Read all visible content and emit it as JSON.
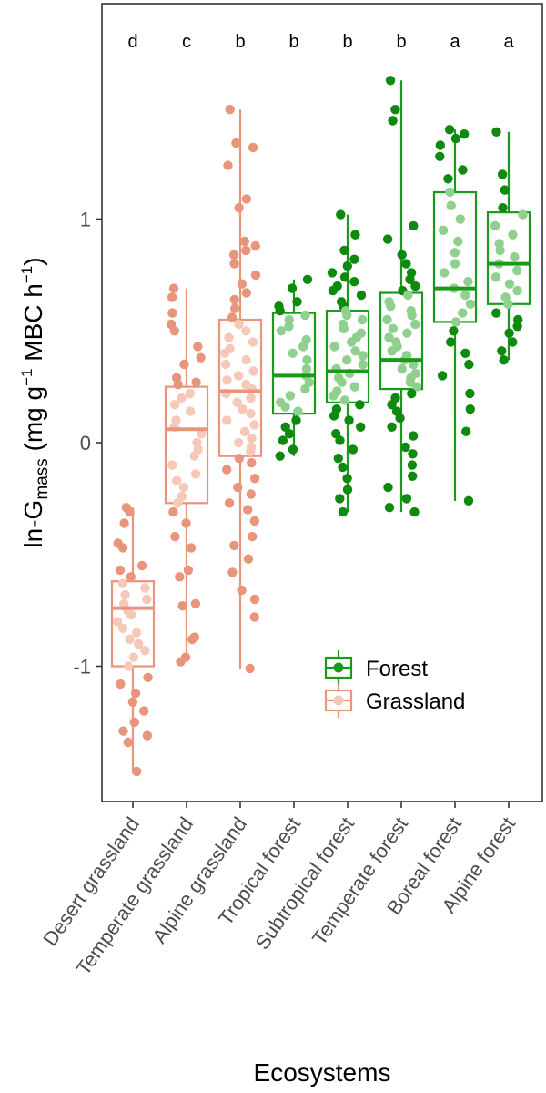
{
  "chart_data": {
    "type": "box",
    "xlabel": "Ecosystems",
    "ylabel": {
      "prefix": "ln-G",
      "sub": "mass",
      "unit_a": " (mg g",
      "sup_a": "−1",
      "unit_b": " MBC h",
      "sup_b": "−1",
      "close": ")"
    },
    "ylim": [
      -1.6,
      1.95
    ],
    "yticks": [
      {
        "value": -1,
        "label": "-1"
      },
      {
        "value": 0,
        "label": "0"
      },
      {
        "value": 1,
        "label": "1"
      }
    ],
    "grid": false,
    "legend_position": "bottom-right",
    "legend": [
      {
        "name": "Forest",
        "color": "#1a9a1a"
      },
      {
        "name": "Grassland",
        "color": "#e8957c"
      }
    ],
    "colors": {
      "Forest": {
        "box": "#1a9a1a",
        "point_dark": "#0e8a0e",
        "point_light": "#8fd08f"
      },
      "Grassland": {
        "box": "#e8957c",
        "point_dark": "#e8957c",
        "point_light": "#f6c8b8"
      }
    },
    "categories": [
      {
        "label": "Desert grassland",
        "group": "Grassland",
        "sig": "d",
        "min": -1.47,
        "q1": -1.0,
        "median": -0.74,
        "q3": -0.62,
        "max": -0.29,
        "points": [
          -0.29,
          -0.31,
          -0.36,
          -0.45,
          -0.47,
          -0.55,
          -0.57,
          -0.6,
          -0.63,
          -0.65,
          -0.68,
          -0.7,
          -0.72,
          -0.75,
          -0.77,
          -0.8,
          -0.83,
          -0.85,
          -0.88,
          -0.9,
          -0.93,
          -0.96,
          -1.0,
          -1.05,
          -1.08,
          -1.12,
          -1.16,
          -1.2,
          -1.25,
          -1.29,
          -1.31,
          -1.34,
          -1.47
        ]
      },
      {
        "label": "Temperate grassland",
        "group": "Grassland",
        "sig": "c",
        "min": -0.98,
        "q1": -0.27,
        "median": 0.06,
        "q3": 0.25,
        "max": 0.69,
        "points": [
          0.69,
          0.65,
          0.58,
          0.53,
          0.5,
          0.43,
          0.38,
          0.35,
          0.29,
          0.27,
          0.26,
          0.22,
          0.2,
          0.17,
          0.14,
          0.1,
          0.07,
          0.04,
          0.0,
          -0.03,
          -0.06,
          -0.1,
          -0.14,
          -0.17,
          -0.2,
          -0.24,
          -0.27,
          -0.31,
          -0.36,
          -0.42,
          -0.47,
          -0.57,
          -0.6,
          -0.72,
          -0.73,
          -0.87,
          -0.88,
          -0.96,
          -0.98
        ]
      },
      {
        "label": "Alpine grassland",
        "group": "Grassland",
        "sig": "b",
        "min": -1.01,
        "q1": -0.06,
        "median": 0.23,
        "q3": 0.55,
        "max": 1.49,
        "points": [
          1.49,
          1.34,
          1.32,
          1.24,
          1.09,
          1.05,
          0.9,
          0.88,
          0.86,
          0.84,
          0.8,
          0.75,
          0.71,
          0.67,
          0.64,
          0.6,
          0.56,
          0.53,
          0.5,
          0.47,
          0.45,
          0.42,
          0.4,
          0.37,
          0.35,
          0.32,
          0.3,
          0.28,
          0.26,
          0.24,
          0.22,
          0.2,
          0.18,
          0.15,
          0.13,
          0.1,
          0.08,
          0.05,
          0.02,
          0.0,
          -0.02,
          -0.04,
          -0.07,
          -0.09,
          -0.12,
          -0.16,
          -0.2,
          -0.23,
          -0.27,
          -0.3,
          -0.35,
          -0.42,
          -0.46,
          -0.52,
          -0.58,
          -0.66,
          -0.7,
          -0.78,
          -1.01
        ]
      },
      {
        "label": "Tropical forest",
        "group": "Forest",
        "sig": "b",
        "min": -0.06,
        "q1": 0.13,
        "median": 0.3,
        "q3": 0.58,
        "max": 0.73,
        "points": [
          0.73,
          0.69,
          0.63,
          0.61,
          0.59,
          0.57,
          0.55,
          0.52,
          0.5,
          0.46,
          0.43,
          0.4,
          0.37,
          0.33,
          0.3,
          0.27,
          0.24,
          0.21,
          0.18,
          0.16,
          0.14,
          0.1,
          0.07,
          0.04,
          0.01,
          -0.03,
          -0.06
        ]
      },
      {
        "label": "Subtropical forest",
        "group": "Forest",
        "sig": "b",
        "min": -0.31,
        "q1": 0.18,
        "median": 0.32,
        "q3": 0.59,
        "max": 1.02,
        "points": [
          1.02,
          0.93,
          0.86,
          0.82,
          0.79,
          0.76,
          0.74,
          0.72,
          0.7,
          0.68,
          0.66,
          0.63,
          0.61,
          0.59,
          0.57,
          0.55,
          0.53,
          0.51,
          0.49,
          0.47,
          0.45,
          0.43,
          0.41,
          0.39,
          0.37,
          0.35,
          0.33,
          0.31,
          0.29,
          0.27,
          0.25,
          0.23,
          0.21,
          0.19,
          0.17,
          0.15,
          0.12,
          0.1,
          0.07,
          0.04,
          0.01,
          -0.03,
          -0.07,
          -0.11,
          -0.16,
          -0.21,
          -0.25,
          -0.31
        ]
      },
      {
        "label": "Temperate forest",
        "group": "Forest",
        "sig": "b",
        "min": -0.31,
        "q1": 0.24,
        "median": 0.37,
        "q3": 0.67,
        "max": 1.62,
        "points": [
          1.62,
          1.49,
          1.44,
          0.97,
          0.91,
          0.84,
          0.8,
          0.76,
          0.73,
          0.7,
          0.68,
          0.66,
          0.63,
          0.61,
          0.59,
          0.57,
          0.55,
          0.53,
          0.51,
          0.49,
          0.47,
          0.45,
          0.43,
          0.41,
          0.39,
          0.37,
          0.35,
          0.33,
          0.31,
          0.29,
          0.27,
          0.25,
          0.22,
          0.2,
          0.17,
          0.14,
          0.11,
          0.07,
          0.03,
          -0.02,
          -0.05,
          -0.1,
          -0.15,
          -0.2,
          -0.25,
          -0.29,
          -0.31
        ]
      },
      {
        "label": "Boreal forest",
        "group": "Forest",
        "sig": "a",
        "min": -0.26,
        "q1": 0.54,
        "median": 0.69,
        "q3": 1.12,
        "max": 1.4,
        "points": [
          1.4,
          1.38,
          1.36,
          1.33,
          1.28,
          1.22,
          1.18,
          1.12,
          1.06,
          1.0,
          0.95,
          0.9,
          0.85,
          0.8,
          0.76,
          0.72,
          0.69,
          0.66,
          0.62,
          0.58,
          0.54,
          0.5,
          0.45,
          0.4,
          0.35,
          0.3,
          0.22,
          0.15,
          0.05,
          -0.26
        ]
      },
      {
        "label": "Alpine forest",
        "group": "Forest",
        "sig": "a",
        "min": 0.37,
        "q1": 0.62,
        "median": 0.8,
        "q3": 1.03,
        "max": 1.39,
        "points": [
          1.39,
          1.2,
          1.13,
          1.05,
          1.02,
          0.97,
          0.93,
          0.89,
          0.86,
          0.83,
          0.8,
          0.77,
          0.74,
          0.71,
          0.68,
          0.65,
          0.62,
          0.58,
          0.55,
          0.52,
          0.49,
          0.45,
          0.41,
          0.37
        ]
      }
    ]
  }
}
